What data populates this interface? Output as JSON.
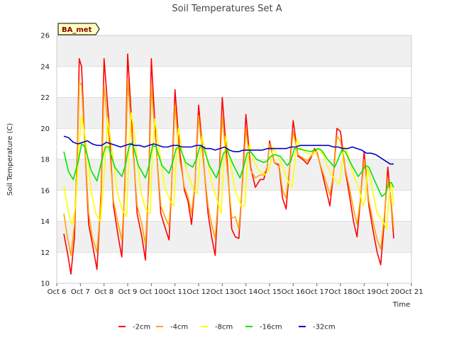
{
  "chart_data": {
    "type": "line",
    "title": "Soil Temperatures Set A",
    "xlabel": "Time",
    "ylabel": "Soil Temperature (C)",
    "station_tag": "BA_met",
    "xlim": [
      6,
      21
    ],
    "ylim": [
      10,
      26
    ],
    "x_ticks": [
      6,
      7,
      8,
      9,
      10,
      11,
      12,
      13,
      14,
      15,
      16,
      17,
      18,
      19,
      20,
      21
    ],
    "x_tick_labels": [
      "Oct 6",
      "Oct 7",
      "Oct 8",
      "Oct 9",
      "Oct 10",
      "Oct 11",
      "Oct 12",
      "Oct 13",
      "Oct 14",
      "Oct 15",
      "Oct 16",
      "Oct 17",
      "Oct 18",
      "Oct 19",
      "Oct 20",
      "Oct 21"
    ],
    "y_ticks": [
      10,
      12,
      14,
      16,
      18,
      20,
      22,
      24,
      26
    ],
    "y_tick_labels": [
      "10",
      "12",
      "14",
      "16",
      "18",
      "20",
      "22",
      "24",
      "26"
    ],
    "grid": true,
    "legend_position": "bottom",
    "series": [
      {
        "name": "-2cm",
        "color": "#ff0000",
        "x": [
          6.3,
          6.45,
          6.6,
          6.75,
          6.88,
          6.95,
          7.05,
          7.2,
          7.35,
          7.5,
          7.7,
          7.88,
          8.0,
          8.2,
          8.4,
          8.6,
          8.75,
          8.88,
          9.0,
          9.2,
          9.4,
          9.6,
          9.75,
          9.9,
          10.0,
          10.2,
          10.4,
          10.6,
          10.75,
          10.85,
          11.0,
          11.2,
          11.4,
          11.55,
          11.7,
          11.85,
          12.0,
          12.2,
          12.4,
          12.55,
          12.7,
          12.85,
          13.0,
          13.2,
          13.4,
          13.55,
          13.7,
          13.85,
          14.0,
          14.2,
          14.4,
          14.6,
          14.75,
          14.9,
          15.0,
          15.2,
          15.4,
          15.55,
          15.7,
          15.85,
          16.0,
          16.2,
          16.4,
          16.6,
          16.75,
          16.9,
          17.0,
          17.2,
          17.4,
          17.55,
          17.7,
          17.85,
          18.0,
          18.2,
          18.4,
          18.55,
          18.7,
          18.85,
          19.0,
          19.2,
          19.4,
          19.55,
          19.7,
          19.85,
          20.0,
          20.15,
          20.25
        ],
        "y": [
          13.2,
          12.0,
          10.6,
          13.0,
          19.0,
          24.5,
          24.0,
          18.5,
          13.8,
          12.6,
          10.9,
          16.0,
          24.5,
          20.5,
          15.0,
          13.0,
          11.7,
          16.5,
          24.8,
          19.5,
          14.5,
          13.0,
          11.5,
          17.0,
          24.5,
          19.0,
          14.5,
          13.5,
          12.8,
          16.0,
          22.5,
          18.5,
          16.0,
          15.3,
          13.8,
          16.5,
          21.5,
          18.0,
          14.5,
          13.0,
          11.8,
          16.0,
          22.0,
          18.0,
          13.5,
          13.0,
          12.9,
          16.5,
          20.9,
          17.5,
          16.2,
          16.7,
          16.7,
          17.5,
          19.2,
          17.8,
          17.6,
          15.5,
          14.8,
          17.5,
          20.5,
          18.2,
          18.0,
          17.7,
          18.1,
          18.7,
          18.5,
          17.3,
          16.0,
          15.0,
          17.0,
          20.0,
          19.8,
          17.3,
          15.5,
          14.0,
          13.0,
          15.5,
          18.5,
          15.0,
          13.2,
          12.0,
          11.2,
          14.0,
          17.5,
          15.0,
          12.9
        ]
      },
      {
        "name": "-4cm",
        "color": "#ffa500",
        "x": [
          6.3,
          6.45,
          6.6,
          6.75,
          6.88,
          6.95,
          7.05,
          7.2,
          7.35,
          7.5,
          7.7,
          7.88,
          8.0,
          8.2,
          8.4,
          8.6,
          8.75,
          8.88,
          9.0,
          9.2,
          9.4,
          9.6,
          9.75,
          9.9,
          10.0,
          10.2,
          10.4,
          10.6,
          10.75,
          10.85,
          11.0,
          11.2,
          11.4,
          11.55,
          11.7,
          11.85,
          12.0,
          12.2,
          12.4,
          12.55,
          12.7,
          12.85,
          13.0,
          13.2,
          13.4,
          13.55,
          13.7,
          13.85,
          14.0,
          14.2,
          14.4,
          14.6,
          14.75,
          14.9,
          15.0,
          15.2,
          15.4,
          15.55,
          15.7,
          15.85,
          16.0,
          16.2,
          16.4,
          16.6,
          16.75,
          16.9,
          17.0,
          17.2,
          17.4,
          17.55,
          17.7,
          17.85,
          18.0,
          18.2,
          18.4,
          18.55,
          18.7,
          18.85,
          19.0,
          19.2,
          19.4,
          19.55,
          19.7,
          19.85,
          20.0,
          20.15,
          20.25
        ],
        "y": [
          14.5,
          13.0,
          11.8,
          13.8,
          18.5,
          23.0,
          22.8,
          18.5,
          14.5,
          13.0,
          12.0,
          15.5,
          22.8,
          19.5,
          15.3,
          13.8,
          12.8,
          16.0,
          23.2,
          19.0,
          15.0,
          13.8,
          12.5,
          16.5,
          22.8,
          18.8,
          15.0,
          14.2,
          13.7,
          16.0,
          21.5,
          18.0,
          16.2,
          15.6,
          14.5,
          16.5,
          20.8,
          17.8,
          15.0,
          13.8,
          12.9,
          15.8,
          20.8,
          17.5,
          14.2,
          14.3,
          13.5,
          16.3,
          20.0,
          17.3,
          16.8,
          17.0,
          17.0,
          17.5,
          19.0,
          17.8,
          17.7,
          16.0,
          15.5,
          17.5,
          19.8,
          18.3,
          18.1,
          17.9,
          18.2,
          18.6,
          18.4,
          17.4,
          16.5,
          15.7,
          17.0,
          19.5,
          19.2,
          17.4,
          16.0,
          14.8,
          13.8,
          15.5,
          18.0,
          15.3,
          13.8,
          12.8,
          12.2,
          14.3,
          16.8,
          15.2,
          13.5
        ]
      },
      {
        "name": "-8cm",
        "color": "#ffff00",
        "x": [
          6.3,
          6.5,
          6.65,
          6.8,
          6.95,
          7.05,
          7.2,
          7.45,
          7.65,
          7.85,
          8.05,
          8.15,
          8.3,
          8.55,
          8.75,
          8.95,
          9.05,
          9.15,
          9.3,
          9.55,
          9.75,
          9.95,
          10.05,
          10.15,
          10.3,
          10.55,
          10.8,
          10.95,
          11.05,
          11.15,
          11.3,
          11.55,
          11.8,
          11.95,
          12.05,
          12.15,
          12.3,
          12.55,
          12.8,
          12.95,
          13.05,
          13.15,
          13.3,
          13.55,
          13.8,
          13.95,
          14.05,
          14.15,
          14.3,
          14.55,
          14.8,
          14.95,
          15.05,
          15.15,
          15.3,
          15.55,
          15.8,
          15.95,
          16.05,
          16.15,
          16.3,
          16.55,
          16.8,
          16.95,
          17.05,
          17.15,
          17.3,
          17.55,
          17.8,
          17.95,
          18.05,
          18.15,
          18.3,
          18.55,
          18.8,
          18.95,
          19.05,
          19.15,
          19.3,
          19.55,
          19.8,
          19.95,
          20.05,
          20.15,
          20.25
        ],
        "y": [
          16.3,
          14.5,
          13.8,
          15.0,
          19.0,
          20.8,
          19.5,
          16.0,
          14.5,
          14.0,
          18.0,
          20.7,
          19.0,
          16.0,
          14.8,
          14.3,
          18.5,
          21.0,
          19.5,
          16.0,
          14.8,
          14.5,
          18.5,
          20.6,
          19.0,
          16.3,
          15.3,
          15.0,
          18.0,
          20.0,
          18.5,
          17.0,
          16.0,
          15.8,
          18.0,
          19.5,
          18.5,
          16.5,
          15.3,
          14.5,
          17.5,
          19.5,
          18.2,
          16.0,
          15.0,
          15.0,
          17.5,
          19.0,
          18.0,
          17.3,
          17.0,
          17.2,
          17.8,
          18.8,
          18.3,
          17.6,
          16.5,
          16.2,
          17.5,
          19.3,
          18.8,
          18.4,
          18.3,
          18.4,
          18.6,
          18.6,
          18.2,
          17.2,
          16.6,
          16.4,
          17.5,
          18.8,
          18.4,
          17.0,
          16.0,
          15.0,
          15.5,
          17.5,
          16.5,
          14.5,
          14.0,
          13.5,
          15.5,
          16.5,
          15.0
        ]
      },
      {
        "name": "-16cm",
        "color": "#00e600",
        "x": [
          6.3,
          6.5,
          6.7,
          6.9,
          7.05,
          7.2,
          7.45,
          7.7,
          7.85,
          8.05,
          8.2,
          8.45,
          8.75,
          8.9,
          9.05,
          9.2,
          9.45,
          9.75,
          9.9,
          10.05,
          10.2,
          10.45,
          10.75,
          10.9,
          11.05,
          11.2,
          11.45,
          11.75,
          11.9,
          12.05,
          12.2,
          12.45,
          12.75,
          12.9,
          13.05,
          13.2,
          13.45,
          13.75,
          13.9,
          14.05,
          14.2,
          14.45,
          14.75,
          14.9,
          15.05,
          15.2,
          15.45,
          15.75,
          15.9,
          16.05,
          16.2,
          16.45,
          16.75,
          16.9,
          17.05,
          17.2,
          17.45,
          17.75,
          17.9,
          18.05,
          18.2,
          18.45,
          18.75,
          18.9,
          19.05,
          19.2,
          19.45,
          19.75,
          19.9,
          20.05,
          20.15,
          20.25
        ],
        "y": [
          18.5,
          17.2,
          16.7,
          17.8,
          19.0,
          18.8,
          17.3,
          16.6,
          17.6,
          18.8,
          18.8,
          17.5,
          16.9,
          17.6,
          18.8,
          19.1,
          17.6,
          16.8,
          17.6,
          18.9,
          18.8,
          17.6,
          17.1,
          17.8,
          18.7,
          18.8,
          17.8,
          17.5,
          18.0,
          18.8,
          18.8,
          17.6,
          16.8,
          17.5,
          18.4,
          18.6,
          17.7,
          16.8,
          17.5,
          18.4,
          18.5,
          18.0,
          17.8,
          17.9,
          18.2,
          18.3,
          18.2,
          17.6,
          17.9,
          18.7,
          18.7,
          18.6,
          18.5,
          18.6,
          18.7,
          18.6,
          18.0,
          17.5,
          18.0,
          18.6,
          18.5,
          17.7,
          16.9,
          17.2,
          17.6,
          17.5,
          16.6,
          15.6,
          15.8,
          16.5,
          16.5,
          16.2
        ]
      },
      {
        "name": "-32cm",
        "color": "#0000cc",
        "x": [
          6.3,
          6.5,
          6.7,
          6.9,
          7.1,
          7.3,
          7.5,
          7.7,
          7.9,
          8.1,
          8.3,
          8.5,
          8.7,
          8.9,
          9.1,
          9.3,
          9.5,
          9.7,
          9.9,
          10.1,
          10.3,
          10.5,
          10.7,
          10.9,
          11.1,
          11.3,
          11.5,
          11.7,
          11.9,
          12.1,
          12.3,
          12.5,
          12.7,
          12.9,
          13.1,
          13.3,
          13.5,
          13.7,
          13.9,
          14.1,
          14.3,
          14.5,
          14.7,
          14.9,
          15.1,
          15.3,
          15.5,
          15.7,
          15.9,
          16.1,
          16.3,
          16.5,
          16.7,
          16.9,
          17.1,
          17.3,
          17.5,
          17.7,
          17.9,
          18.1,
          18.3,
          18.5,
          18.7,
          18.9,
          19.1,
          19.3,
          19.5,
          19.7,
          19.9,
          20.1,
          20.25
        ],
        "y": [
          19.5,
          19.4,
          19.1,
          19.0,
          19.1,
          19.2,
          19.0,
          18.9,
          18.9,
          19.1,
          19.0,
          18.9,
          18.8,
          18.9,
          19.0,
          18.9,
          18.9,
          18.8,
          18.9,
          19.0,
          18.9,
          18.8,
          18.8,
          18.9,
          18.9,
          18.8,
          18.8,
          18.8,
          18.9,
          18.9,
          18.7,
          18.7,
          18.6,
          18.7,
          18.8,
          18.6,
          18.5,
          18.5,
          18.6,
          18.6,
          18.6,
          18.6,
          18.6,
          18.7,
          18.7,
          18.7,
          18.7,
          18.7,
          18.8,
          18.8,
          18.9,
          18.9,
          18.9,
          18.9,
          18.9,
          18.9,
          18.9,
          18.8,
          18.8,
          18.7,
          18.7,
          18.8,
          18.7,
          18.6,
          18.4,
          18.4,
          18.3,
          18.1,
          17.9,
          17.7,
          17.7
        ]
      }
    ]
  }
}
